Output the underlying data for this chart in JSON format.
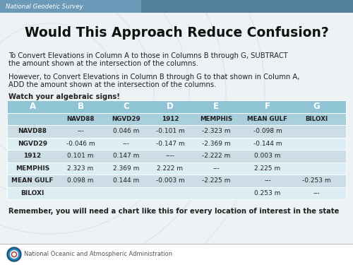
{
  "title": "Would This Approach Reduce Confusion?",
  "header_bar_text": "National Geodetic Survey",
  "body_text_1a": "To Convert Elevations in Column A to those in Columns B through G, SUBTRACT",
  "body_text_1b": "the amount shown at the intersection of the columns.",
  "body_text_2a": "However, to Convert Elevations in Column B through G to that shown in Column A,",
  "body_text_2b": "ADD the amount shown at the intersection of the columns.",
  "body_text_3": "Watch your algebraic signs!",
  "footer_text": "Remember, you will need a chart like this for every location of interest in the state",
  "noaa_label": "National Oceanic and Atmospheric Administration",
  "col_headers": [
    "A",
    "B",
    "C",
    "D",
    "E",
    "F",
    "G"
  ],
  "col_subheaders": [
    "",
    "NAVD88",
    "NGVD29",
    "1912",
    "MEMPHIS",
    "MEAN GULF",
    "BILOXI"
  ],
  "row_labels": [
    "NAVD88",
    "NGVD29",
    "1912",
    "MEMPHIS",
    "MEAN GULF",
    "BILOXI"
  ],
  "table_data": [
    [
      "---",
      "0.046 m",
      "-0.101 m",
      "-2.323 m",
      "-0.098 m",
      ""
    ],
    [
      "-0.046 m",
      "---",
      "-0.147 m",
      "-2.369 m",
      "-0.144 m",
      ""
    ],
    [
      "0.101 m",
      "0.147 m",
      "----",
      "-2.222 m",
      "0.003 m",
      ""
    ],
    [
      "2.323 m",
      "2.369 m",
      "2.222 m",
      "---",
      "2.225 m",
      ""
    ],
    [
      "0.098 m",
      "0.144 m",
      "-0.003 m",
      "-2.225 m",
      "---",
      "-0.253 m"
    ],
    [
      "",
      "",
      "",
      "",
      "0.253 m",
      "---"
    ]
  ],
  "bg_color": "#edf2f4",
  "header_bar_color": "#6b9ab8",
  "header_bar_gradient_right": "#3a6880",
  "table_header_color": "#8ec4d4",
  "table_row_color_odd": "#ccdde6",
  "table_row_color_even": "#ddedf4",
  "table_subheader_color": "#aacfdc",
  "text_color": "#222222",
  "title_color": "#111111",
  "watermark_color": "#c5d8e2",
  "bottom_bar_color": "#ffffff",
  "noaa_text_color": "#555555"
}
